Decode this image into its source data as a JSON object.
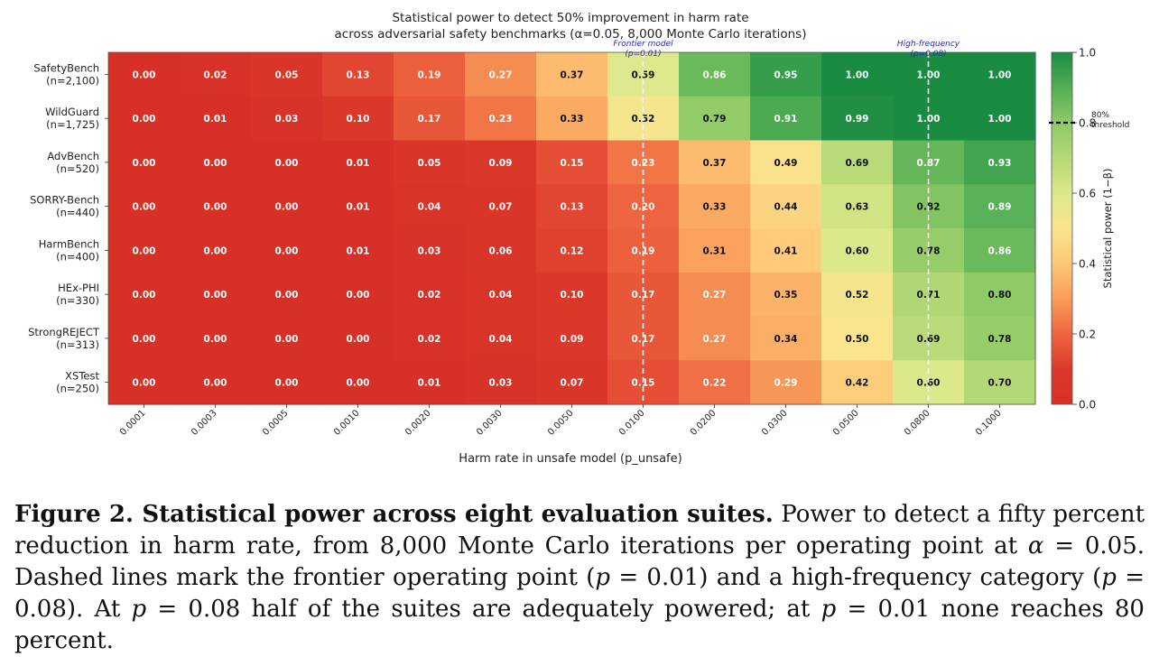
{
  "chart_data": {
    "type": "heatmap",
    "title": "Statistical power to detect 50% improvement in harm rate",
    "subtitle": "across adversarial safety benchmarks (α=0.05, 8,000 Monte Carlo iterations)",
    "xlabel": "Harm rate in unsafe model (p_unsafe)",
    "ylabel": "",
    "x_ticks": [
      "0.0001",
      "0.0003",
      "0.0005",
      "0.0010",
      "0.0020",
      "0.0030",
      "0.0050",
      "0.0100",
      "0.0200",
      "0.0300",
      "0.0500",
      "0.0800",
      "0.1000"
    ],
    "rows": [
      {
        "name": "SafetyBench",
        "n": "(n=2,100)",
        "values": [
          "0.00",
          "0.02",
          "0.05",
          "0.13",
          "0.19",
          "0.27",
          "0.37",
          "0.59",
          "0.86",
          "0.95",
          "1.00",
          "1.00",
          "1.00"
        ]
      },
      {
        "name": "WildGuard",
        "n": "(n=1,725)",
        "values": [
          "0.00",
          "0.01",
          "0.03",
          "0.10",
          "0.17",
          "0.23",
          "0.33",
          "0.52",
          "0.79",
          "0.91",
          "0.99",
          "1.00",
          "1.00"
        ]
      },
      {
        "name": "AdvBench",
        "n": "(n=520)",
        "values": [
          "0.00",
          "0.00",
          "0.00",
          "0.01",
          "0.05",
          "0.09",
          "0.15",
          "0.23",
          "0.37",
          "0.49",
          "0.69",
          "0.87",
          "0.93"
        ]
      },
      {
        "name": "SORRY-Bench",
        "n": "(n=440)",
        "values": [
          "0.00",
          "0.00",
          "0.00",
          "0.01",
          "0.04",
          "0.07",
          "0.13",
          "0.20",
          "0.33",
          "0.44",
          "0.63",
          "0.82",
          "0.89"
        ]
      },
      {
        "name": "HarmBench",
        "n": "(n=400)",
        "values": [
          "0.00",
          "0.00",
          "0.00",
          "0.01",
          "0.03",
          "0.06",
          "0.12",
          "0.19",
          "0.31",
          "0.41",
          "0.60",
          "0.78",
          "0.86"
        ]
      },
      {
        "name": "HEx-PHI",
        "n": "(n=330)",
        "values": [
          "0.00",
          "0.00",
          "0.00",
          "0.00",
          "0.02",
          "0.04",
          "0.10",
          "0.17",
          "0.27",
          "0.35",
          "0.52",
          "0.71",
          "0.80"
        ]
      },
      {
        "name": "StrongREJECT",
        "n": "(n=313)",
        "values": [
          "0.00",
          "0.00",
          "0.00",
          "0.00",
          "0.02",
          "0.04",
          "0.09",
          "0.17",
          "0.27",
          "0.34",
          "0.50",
          "0.69",
          "0.78"
        ]
      },
      {
        "name": "XSTest",
        "n": "(n=250)",
        "values": [
          "0.00",
          "0.00",
          "0.00",
          "0.00",
          "0.01",
          "0.03",
          "0.07",
          "0.15",
          "0.22",
          "0.29",
          "0.42",
          "0.60",
          "0.70"
        ]
      }
    ],
    "colorbar": {
      "label": "Statistical power (1−β)",
      "range": [
        0.0,
        1.0
      ],
      "ticks": [
        "0.0",
        "0.2",
        "0.4",
        "0.6",
        "0.8",
        "1.0"
      ],
      "colormap": "RdYlGn",
      "threshold": {
        "value": 0.8,
        "label_line1": "80%",
        "label_line2": "threshold"
      }
    },
    "annotations": [
      {
        "x_category": "0.0100",
        "line1": "Frontier model",
        "line2": "(p=0.01)"
      },
      {
        "x_category": "0.0800",
        "line1": "High-frequency",
        "line2": "(p=0.08)"
      }
    ]
  },
  "caption": {
    "lead": "Figure 2.  Statistical power across eight evaluation suites.",
    "s1": "Power to detect a fifty percent reduction in harm rate, from 8,000 Monte Carlo iterations per operating point at ",
    "alpha_sym": "α",
    "alpha_eq": " = 0.05. Dashed lines mark the frontier operating point (",
    "p_sym": "p",
    "p1_eq": " = 0.01) and a high-frequency category (",
    "p2_eq": " = 0.08). At ",
    "p3_eq": " = 0.08 half of the suites are adequately powered; at ",
    "p4_eq": " = 0.01 none reaches 80 percent."
  }
}
